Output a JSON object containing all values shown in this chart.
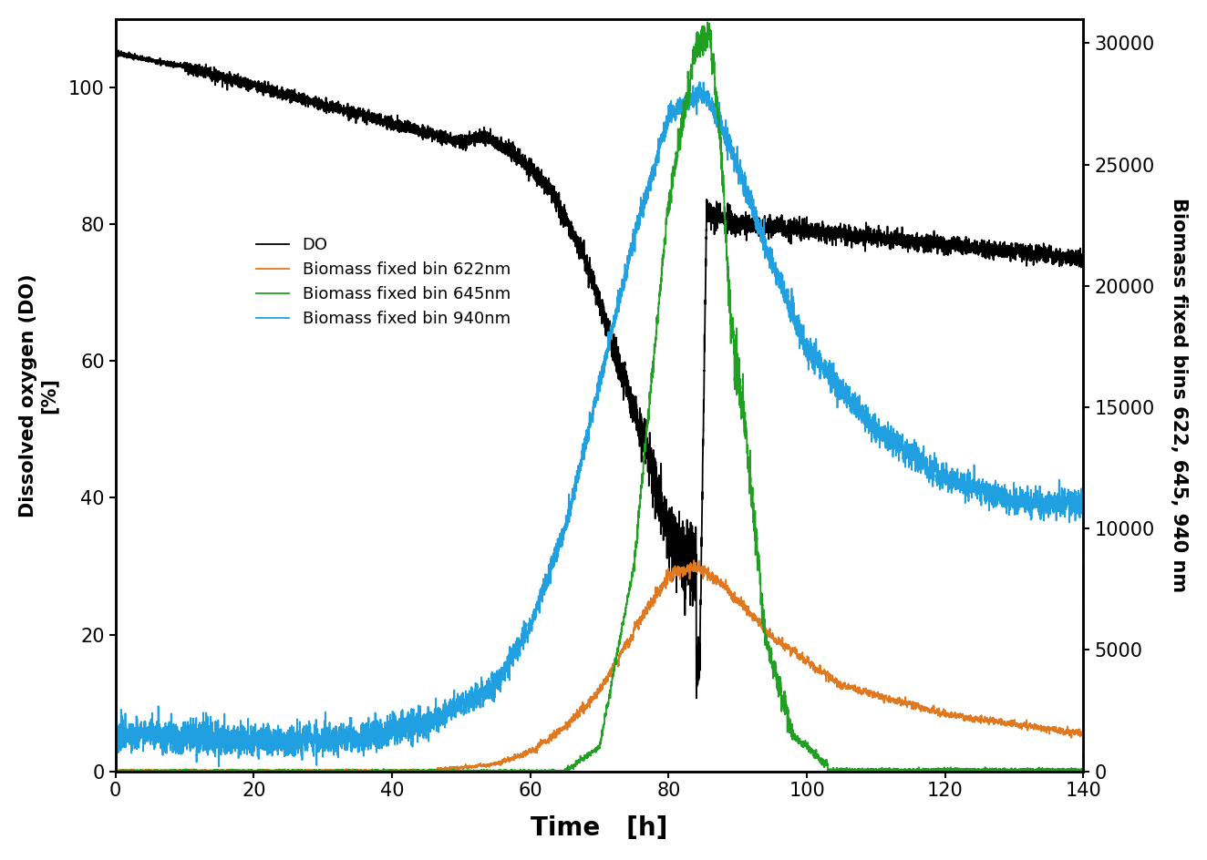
{
  "title": "",
  "xlabel": "Time   [h]",
  "ylabel_left": "Dissolved oxygen (DO)\n[%]",
  "ylabel_right": "Biomass fixed bins 622, 645, 940 nm",
  "xlim": [
    0,
    140
  ],
  "ylim_left": [
    0,
    110
  ],
  "ylim_right": [
    0,
    31000
  ],
  "xticks": [
    0,
    20,
    40,
    60,
    80,
    100,
    120,
    140
  ],
  "yticks_left": [
    0,
    20,
    40,
    60,
    80,
    100
  ],
  "yticks_right": [
    0,
    5000,
    10000,
    15000,
    20000,
    25000,
    30000
  ],
  "legend_labels": [
    "DO",
    "Biomass fixed bin 622nm",
    "Biomass fixed bin 645nm",
    "Biomass fixed bin 940nm"
  ],
  "colors": {
    "DO": "#000000",
    "622nm": "#E07820",
    "645nm": "#20A020",
    "940nm": "#20A0E0"
  },
  "line_widths": {
    "DO": 1.3,
    "622nm": 1.3,
    "645nm": 1.3,
    "940nm": 1.3
  },
  "background_color": "#ffffff",
  "xlabel_fontsize": 20,
  "ylabel_fontsize": 15,
  "tick_fontsize": 15,
  "legend_fontsize": 13
}
